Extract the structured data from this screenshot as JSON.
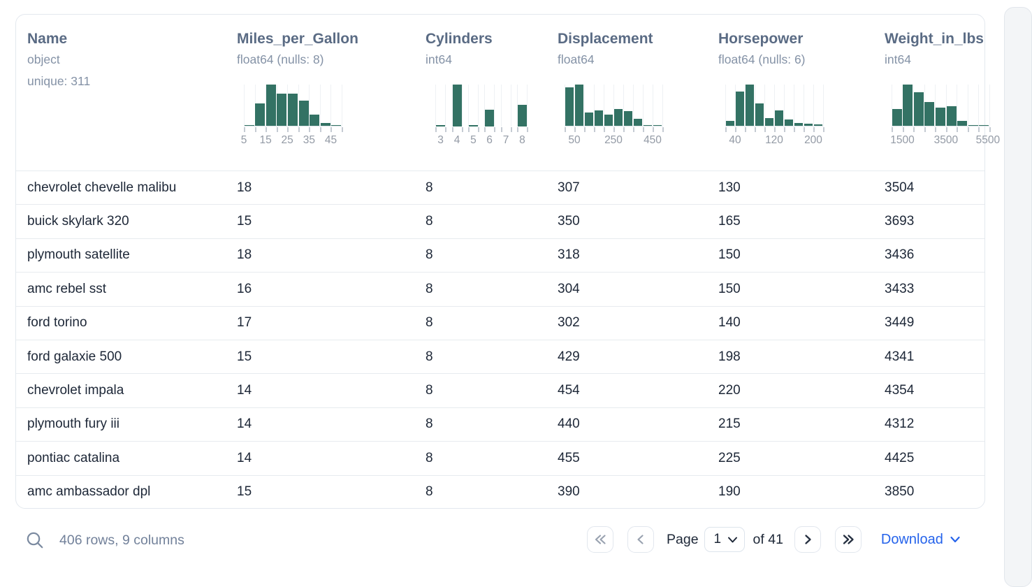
{
  "columns": [
    {
      "name": "Name",
      "dtype": "object",
      "detail": "unique: 311",
      "histogram": null
    },
    {
      "name": "Miles_per_Gallon",
      "dtype": "float64 (nulls: 8)",
      "histogram": {
        "discrete": false,
        "bars": [
          0.03,
          0.55,
          1.0,
          0.79,
          0.78,
          0.61,
          0.28,
          0.09,
          0.03
        ],
        "labels": [
          {
            "text": "5",
            "frac": 0.0
          },
          {
            "text": "15",
            "frac": 0.222
          },
          {
            "text": "25",
            "frac": 0.444
          },
          {
            "text": "35",
            "frac": 0.667
          },
          {
            "text": "45",
            "frac": 0.889
          }
        ]
      }
    },
    {
      "name": "Cylinders",
      "dtype": "int64",
      "histogram": {
        "discrete": true,
        "bars": [
          0.04,
          1.0,
          0.03,
          0.4,
          0.0,
          0.52
        ],
        "labels": [
          {
            "text": "3",
            "frac": 0.083
          },
          {
            "text": "4",
            "frac": 0.25
          },
          {
            "text": "5",
            "frac": 0.417
          },
          {
            "text": "6",
            "frac": 0.583
          },
          {
            "text": "7",
            "frac": 0.75
          },
          {
            "text": "8",
            "frac": 0.917
          }
        ]
      }
    },
    {
      "name": "Displacement",
      "dtype": "float64",
      "histogram": {
        "discrete": false,
        "bars": [
          0.93,
          1.0,
          0.33,
          0.38,
          0.28,
          0.42,
          0.37,
          0.18,
          0.04,
          0.02
        ],
        "labels": [
          {
            "text": "50",
            "frac": 0.1
          },
          {
            "text": "250",
            "frac": 0.5
          },
          {
            "text": "450",
            "frac": 0.9
          }
        ]
      }
    },
    {
      "name": "Horsepower",
      "dtype": "float64 (nulls: 6)",
      "histogram": {
        "discrete": false,
        "bars": [
          0.14,
          0.84,
          1.0,
          0.55,
          0.2,
          0.38,
          0.17,
          0.08,
          0.06,
          0.05
        ],
        "labels": [
          {
            "text": "40",
            "frac": 0.1
          },
          {
            "text": "120",
            "frac": 0.5
          },
          {
            "text": "200",
            "frac": 0.9
          }
        ]
      }
    },
    {
      "name": "Weight_in_lbs",
      "dtype": "int64",
      "histogram": {
        "discrete": false,
        "bars": [
          0.42,
          1.0,
          0.82,
          0.58,
          0.45,
          0.48,
          0.14,
          0.02,
          0.02
        ],
        "labels": [
          {
            "text": "1500",
            "frac": 0.111
          },
          {
            "text": "3500",
            "frac": 0.556
          },
          {
            "text": "5500",
            "frac": 0.985
          }
        ]
      }
    }
  ],
  "rows": [
    [
      "chevrolet chevelle malibu",
      "18",
      "8",
      "307",
      "130",
      "3504"
    ],
    [
      "buick skylark 320",
      "15",
      "8",
      "350",
      "165",
      "3693"
    ],
    [
      "plymouth satellite",
      "18",
      "8",
      "318",
      "150",
      "3436"
    ],
    [
      "amc rebel sst",
      "16",
      "8",
      "304",
      "150",
      "3433"
    ],
    [
      "ford torino",
      "17",
      "8",
      "302",
      "140",
      "3449"
    ],
    [
      "ford galaxie 500",
      "15",
      "8",
      "429",
      "198",
      "4341"
    ],
    [
      "chevrolet impala",
      "14",
      "8",
      "454",
      "220",
      "4354"
    ],
    [
      "plymouth fury iii",
      "14",
      "8",
      "440",
      "215",
      "4312"
    ],
    [
      "pontiac catalina",
      "14",
      "8",
      "455",
      "225",
      "4425"
    ],
    [
      "amc ambassador dpl",
      "15",
      "8",
      "390",
      "190",
      "3850"
    ]
  ],
  "footer": {
    "summary": "406 rows, 9 columns",
    "page_label": "Page",
    "page_value": "1",
    "page_total_label": "of 41",
    "download_label": "Download"
  },
  "colors": {
    "histogram_bar": "#337264",
    "column_title": "#5a6b84",
    "muted_text": "#8492a6",
    "cell_text": "#1d2737",
    "accent_blue": "#2563eb",
    "border": "#e7ebef"
  }
}
